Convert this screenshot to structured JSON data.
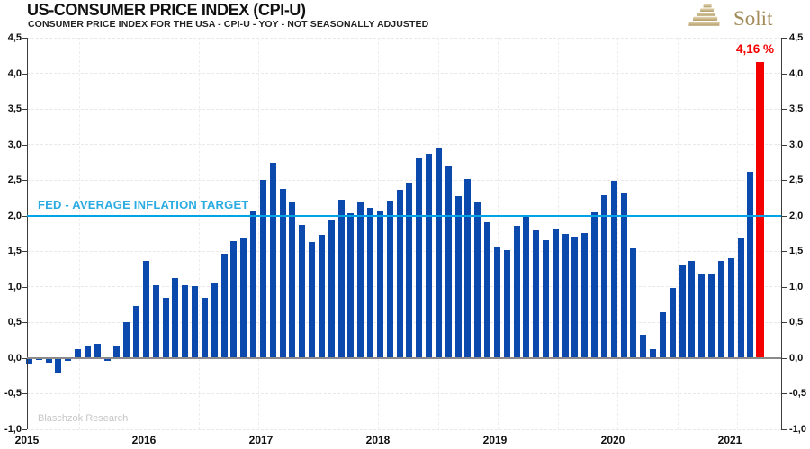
{
  "header": {
    "title": "US-CONSUMER PRICE INDEX (CPI-U)",
    "subtitle": "CONSUMER PRICE INDEX FOR THE USA - CPI-U - YOY - NOT SEASONALLY ADJUSTED",
    "brand": "Solit"
  },
  "watermark": "Blaschzok Research",
  "annotations": {
    "fed_target_label": "FED - AVERAGE INFLATION TARGET",
    "fed_target_value": 2.0,
    "peak_value_label": "4,16 %"
  },
  "colors": {
    "bar_blue": "#0b4aac",
    "bar_red": "#f40000",
    "fed_line": "#00a2e8",
    "fed_text": "#2aabe2",
    "peak_text": "#f40000",
    "zero_line": "#8a8a8a",
    "watermark": "#c6c6c6",
    "logo_gold_light": "#e3d6b4",
    "logo_gold_dark": "#b49c66"
  },
  "chart_data": {
    "type": "bar",
    "title": "US-CONSUMER PRICE INDEX (CPI-U)",
    "subtitle": "CONSUMER PRICE INDEX FOR THE USA - CPI-U - YOY - NOT SEASONALLY ADJUSTED",
    "unit": "percent YoY",
    "x_start": "2015-01",
    "x_end": "2021-04",
    "ylim": [
      -1.0,
      4.5
    ],
    "ytick_step": 0.5,
    "ytick_labels_top_to_bottom": [
      "4,5",
      "4,0",
      "3,5",
      "3,0",
      "2,5",
      "2,0",
      "1,5",
      "1,0",
      "0,5",
      "0,0",
      "-0,5",
      "-1,0"
    ],
    "years": [
      "2015",
      "2016",
      "2017",
      "2018",
      "2019",
      "2020",
      "2021"
    ],
    "grid": "dashed, horizontal every 0.5, vertical every 6 months",
    "highlight_last": true,
    "series": [
      {
        "name": "CPI-U YoY % (monthly, Jan 2015 - Apr 2021)",
        "values": [
          -0.09,
          -0.03,
          -0.07,
          -0.2,
          -0.04,
          0.12,
          0.17,
          0.2,
          -0.04,
          0.17,
          0.5,
          0.73,
          1.37,
          1.02,
          0.85,
          1.13,
          1.02,
          1.01,
          0.84,
          1.06,
          1.46,
          1.64,
          1.69,
          2.07,
          2.5,
          2.74,
          2.38,
          2.2,
          1.87,
          1.63,
          1.73,
          1.94,
          2.23,
          2.04,
          2.2,
          2.11,
          2.07,
          2.21,
          2.36,
          2.46,
          2.8,
          2.87,
          2.95,
          2.7,
          2.28,
          2.52,
          2.18,
          1.91,
          1.55,
          1.52,
          1.86,
          2.0,
          1.79,
          1.65,
          1.81,
          1.75,
          1.71,
          1.76,
          2.05,
          2.29,
          2.49,
          2.33,
          1.54,
          0.33,
          0.12,
          0.65,
          0.99,
          1.31,
          1.37,
          1.18,
          1.17,
          1.36,
          1.4,
          1.68,
          2.62,
          4.16
        ]
      }
    ]
  }
}
